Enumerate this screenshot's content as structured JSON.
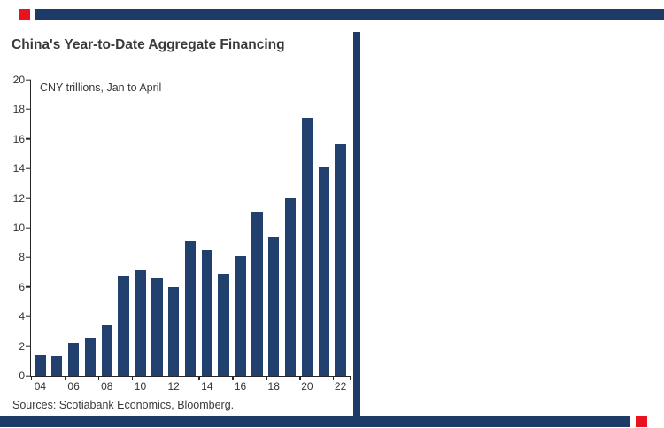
{
  "page": {
    "title": "China's Year-to-Date Aggregate Financing",
    "sources": "Sources: Scotiabank Economics, Bloomberg."
  },
  "colors": {
    "bar": "#21406e",
    "band": "#1e3a66",
    "accent_red": "#e8131c"
  },
  "chart_data": {
    "type": "bar",
    "title": "China's Year-to-Date Aggregate Financing",
    "annotation": "CNY trillions, Jan to April",
    "categories": [
      "04",
      "05",
      "06",
      "07",
      "08",
      "09",
      "10",
      "11",
      "12",
      "13",
      "14",
      "15",
      "16",
      "17",
      "18",
      "19",
      "20",
      "21",
      "22"
    ],
    "values": [
      1.4,
      1.3,
      2.2,
      2.6,
      3.4,
      6.7,
      7.1,
      6.6,
      6.0,
      9.1,
      8.5,
      6.9,
      8.1,
      11.1,
      9.4,
      12.0,
      17.4,
      14.1,
      15.7
    ],
    "x_tick_labels": [
      "04",
      "06",
      "08",
      "10",
      "12",
      "14",
      "16",
      "18",
      "20",
      "22"
    ],
    "x_label_every": 2,
    "xlabel": "",
    "ylabel": "",
    "ylim": [
      0,
      20
    ],
    "y_ticks": [
      0,
      2,
      4,
      6,
      8,
      10,
      12,
      14,
      16,
      18,
      20
    ],
    "grid": false,
    "legend": "none",
    "bar_color": "#21406e"
  }
}
